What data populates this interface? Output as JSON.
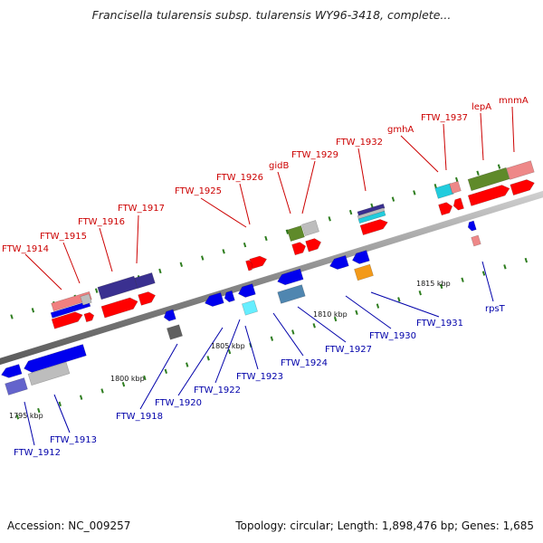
{
  "header": {
    "title": "Francisella tularensis subsp. tularensis WY96-3418, complete..."
  },
  "footer": {
    "accession": "Accession: NC_009257",
    "summary": "Topology: circular; Length: 1,898,476 bp; Genes: 1,685"
  },
  "colors": {
    "forward_label": "#cc0000",
    "reverse_label": "#0000aa",
    "backbone": "#8a8a8a",
    "tick": "#2e7d1f"
  },
  "scale_labels": [
    "1795 kbp",
    "1800 kbp",
    "1805 kbp",
    "1810 kbp",
    "1815 kbp"
  ],
  "top_labels": [
    "FTW_1914",
    "FTW_1915",
    "FTW_1916",
    "FTW_1917",
    "FTW_1925",
    "FTW_1926",
    "gidB",
    "FTW_1929",
    "FTW_1932",
    "gmhA",
    "FTW_1937",
    "lepA",
    "mnmA"
  ],
  "bottom_labels": [
    "FTW_1912",
    "FTW_1913",
    "FTW_1918",
    "FTW_1920",
    "FTW_1922",
    "FTW_1923",
    "FTW_1924",
    "FTW_1927",
    "FTW_1930",
    "FTW_1931",
    "rpsT"
  ]
}
